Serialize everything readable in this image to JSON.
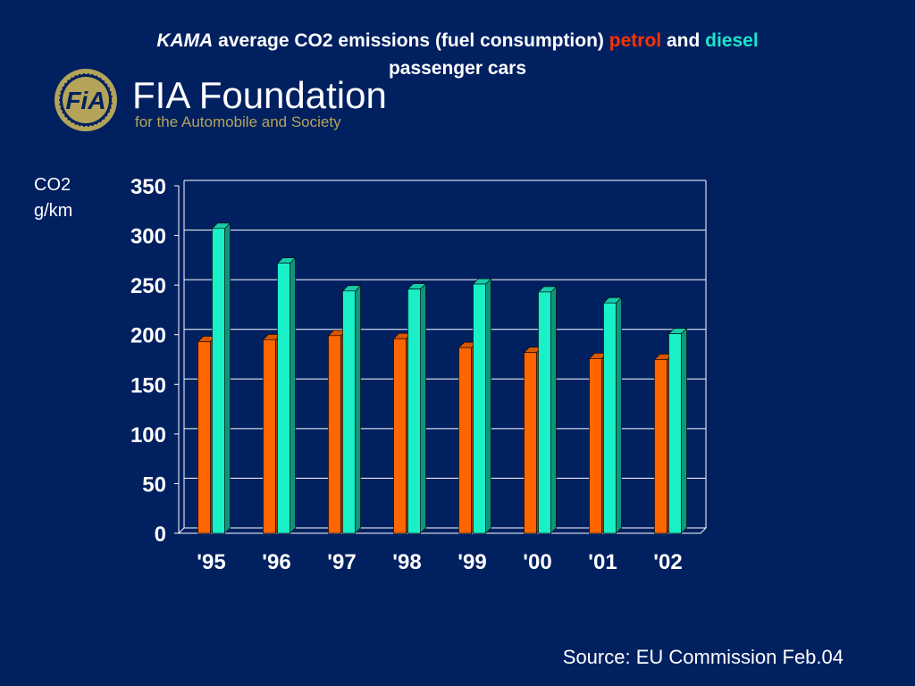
{
  "title": {
    "kama": "KAMA",
    "middle": " average CO2 emissions (fuel consumption) ",
    "petrol": "petrol",
    "and": " and ",
    "diesel": "diesel",
    "line2": "passenger cars"
  },
  "logo": {
    "emblem_text": "FiA",
    "name": "FIA Foundation",
    "tagline": "for the Automobile and Society"
  },
  "source": "Source: EU Commission Feb.04",
  "colors": {
    "background": "#002060",
    "petrol": "#ff6600",
    "diesel": "#19f0c8",
    "logo_gold": "#b4a45a"
  },
  "chart_data": {
    "type": "bar",
    "title": "",
    "ylabel_lines": [
      "CO2",
      "g/km"
    ],
    "xlabel": "",
    "categories": [
      "'95",
      "'96",
      "'97",
      "'98",
      "'99",
      "'00",
      "'01",
      "'02"
    ],
    "ylim": [
      0,
      350
    ],
    "yticks": [
      "0",
      "50",
      "100",
      "150",
      "200",
      "250",
      "300",
      "350"
    ],
    "grid": true,
    "series": [
      {
        "key": "petrol",
        "values": [
          193,
          195,
          199,
          196,
          187,
          182,
          176,
          175
        ]
      },
      {
        "key": "diesel",
        "values": [
          307,
          272,
          244,
          246,
          251,
          243,
          232,
          201
        ]
      }
    ]
  }
}
